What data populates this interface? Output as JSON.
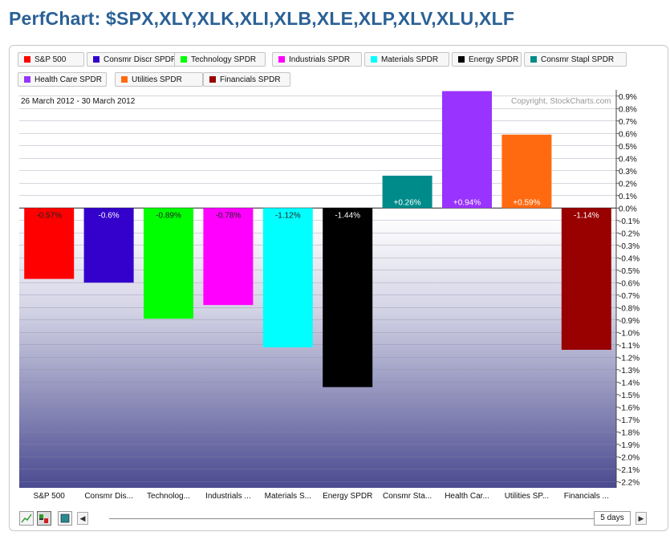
{
  "page": {
    "title": "PerfChart: $SPX,XLY,XLK,XLI,XLB,XLE,XLP,XLV,XLU,XLF"
  },
  "header": {
    "date_range": "26 March 2012 - 30 March 2012",
    "copyright": "Copyright, StockCharts.com"
  },
  "legend": [
    {
      "label": "S&P 500",
      "color": "#ff0000"
    },
    {
      "label": "Consmr Discr SPDR",
      "color": "#3300cc"
    },
    {
      "label": "Technology SPDR",
      "color": "#00ff00"
    },
    {
      "label": "Industrials SPDR",
      "color": "#ff00ff"
    },
    {
      "label": "Materials SPDR",
      "color": "#00ffff"
    },
    {
      "label": "Energy SPDR",
      "color": "#000000"
    },
    {
      "label": "Consmr Stapl SPDR",
      "color": "#008b8b"
    },
    {
      "label": "Health Care SPDR",
      "color": "#9933ff"
    },
    {
      "label": "Utilities SPDR",
      "color": "#ff6a10"
    },
    {
      "label": "Financials SPDR",
      "color": "#990000"
    }
  ],
  "chart_data": {
    "type": "bar",
    "categories": [
      "S&P 500",
      "Consmr Dis...",
      "Technolog...",
      "Industrials ...",
      "Materials S...",
      "Energy SPDR",
      "Consmr Sta...",
      "Health Car...",
      "Utilities SP...",
      "Financials ..."
    ],
    "values": [
      -0.57,
      -0.6,
      -0.89,
      -0.78,
      -1.12,
      -1.44,
      0.26,
      0.94,
      0.59,
      -1.14
    ],
    "value_labels": [
      "-0.57%",
      "-0.6%",
      "-0.89%",
      "-0.78%",
      "-1.12%",
      "-1.44%",
      "+0.26%",
      "+0.94%",
      "+0.59%",
      "-1.14%"
    ],
    "colors": [
      "#ff0000",
      "#3300cc",
      "#00ff00",
      "#ff00ff",
      "#00ffff",
      "#000000",
      "#008b8b",
      "#9933ff",
      "#ff6a10",
      "#990000"
    ],
    "ylim": [
      -2.25,
      0.95
    ],
    "yticks": [
      "0.9%",
      "0.8%",
      "0.7%",
      "0.6%",
      "0.5%",
      "0.4%",
      "0.3%",
      "0.2%",
      "0.1%",
      "0.0%",
      "-0.1%",
      "-0.2%",
      "-0.3%",
      "-0.4%",
      "-0.5%",
      "-0.6%",
      "-0.7%",
      "-0.8%",
      "-0.9%",
      "-1.0%",
      "-1.1%",
      "-1.2%",
      "-1.3%",
      "-1.4%",
      "-1.5%",
      "-1.6%",
      "-1.7%",
      "-1.8%",
      "-1.9%",
      "-2.0%",
      "-2.1%",
      "-2.2%"
    ],
    "ytick_values": [
      0.9,
      0.8,
      0.7,
      0.6,
      0.5,
      0.4,
      0.3,
      0.2,
      0.1,
      0.0,
      -0.1,
      -0.2,
      -0.3,
      -0.4,
      -0.5,
      -0.6,
      -0.7,
      -0.8,
      -0.9,
      -1.0,
      -1.1,
      -1.2,
      -1.3,
      -1.4,
      -1.5,
      -1.6,
      -1.7,
      -1.8,
      -1.9,
      -2.0,
      -2.1,
      -2.2
    ],
    "grid": true
  },
  "controls": {
    "period": "5 days",
    "left_arrow": "◀",
    "right_arrow": "▶",
    "tools": [
      "line-chart-icon",
      "bar-chart-icon",
      "histogram-icon"
    ]
  }
}
